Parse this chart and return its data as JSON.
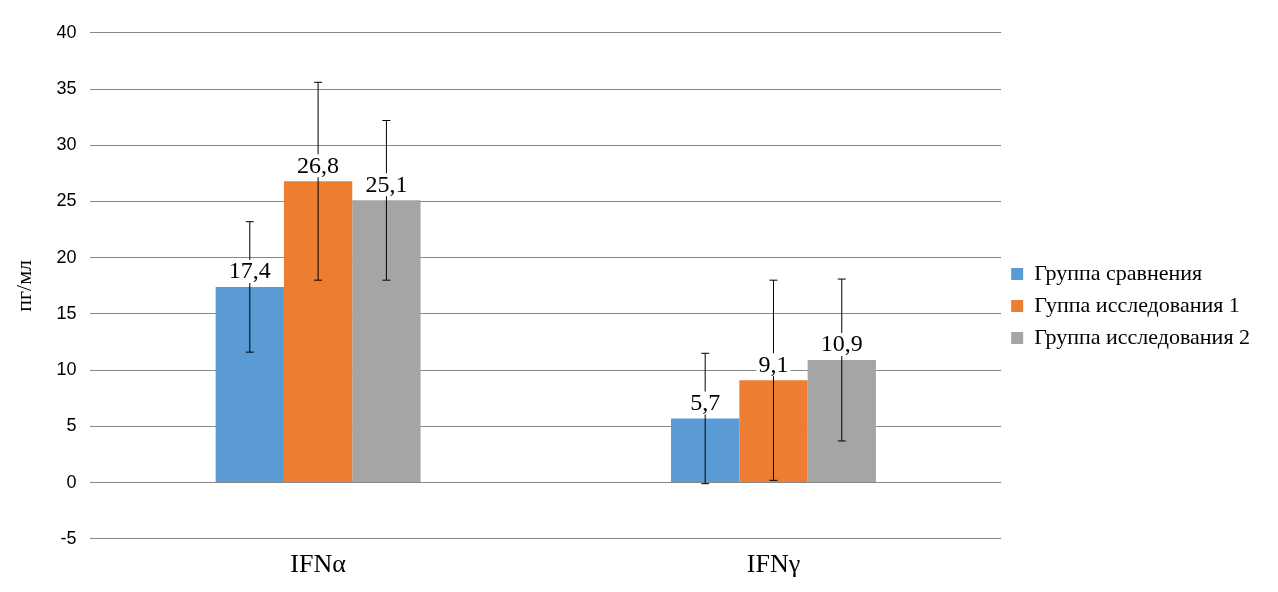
{
  "chart_data": {
    "type": "bar",
    "ylabel": "пг/мл",
    "categories": [
      "IFNα",
      "IFNγ"
    ],
    "series": [
      {
        "name": "Группа сравнения",
        "color": "#5b9bd5",
        "values": [
          17.4,
          5.7
        ],
        "errors": [
          5.8,
          5.8
        ],
        "value_labels": [
          "17,4",
          "5,7"
        ]
      },
      {
        "name": "Гуппа исследования 1",
        "color": "#ed7d31",
        "values": [
          26.8,
          9.1
        ],
        "errors": [
          8.8,
          8.9
        ],
        "value_labels": [
          "26,8",
          "9,1"
        ]
      },
      {
        "name": "Группа исследования 2",
        "color": "#a5a5a5",
        "values": [
          25.1,
          10.9
        ],
        "errors": [
          7.1,
          7.2
        ],
        "value_labels": [
          "25,1",
          "10,9"
        ]
      }
    ],
    "ylim": [
      -5,
      40
    ],
    "yticks": [
      -5,
      0,
      5,
      10,
      15,
      20,
      25,
      30,
      35,
      40
    ],
    "grid": "y",
    "legend": "right"
  }
}
